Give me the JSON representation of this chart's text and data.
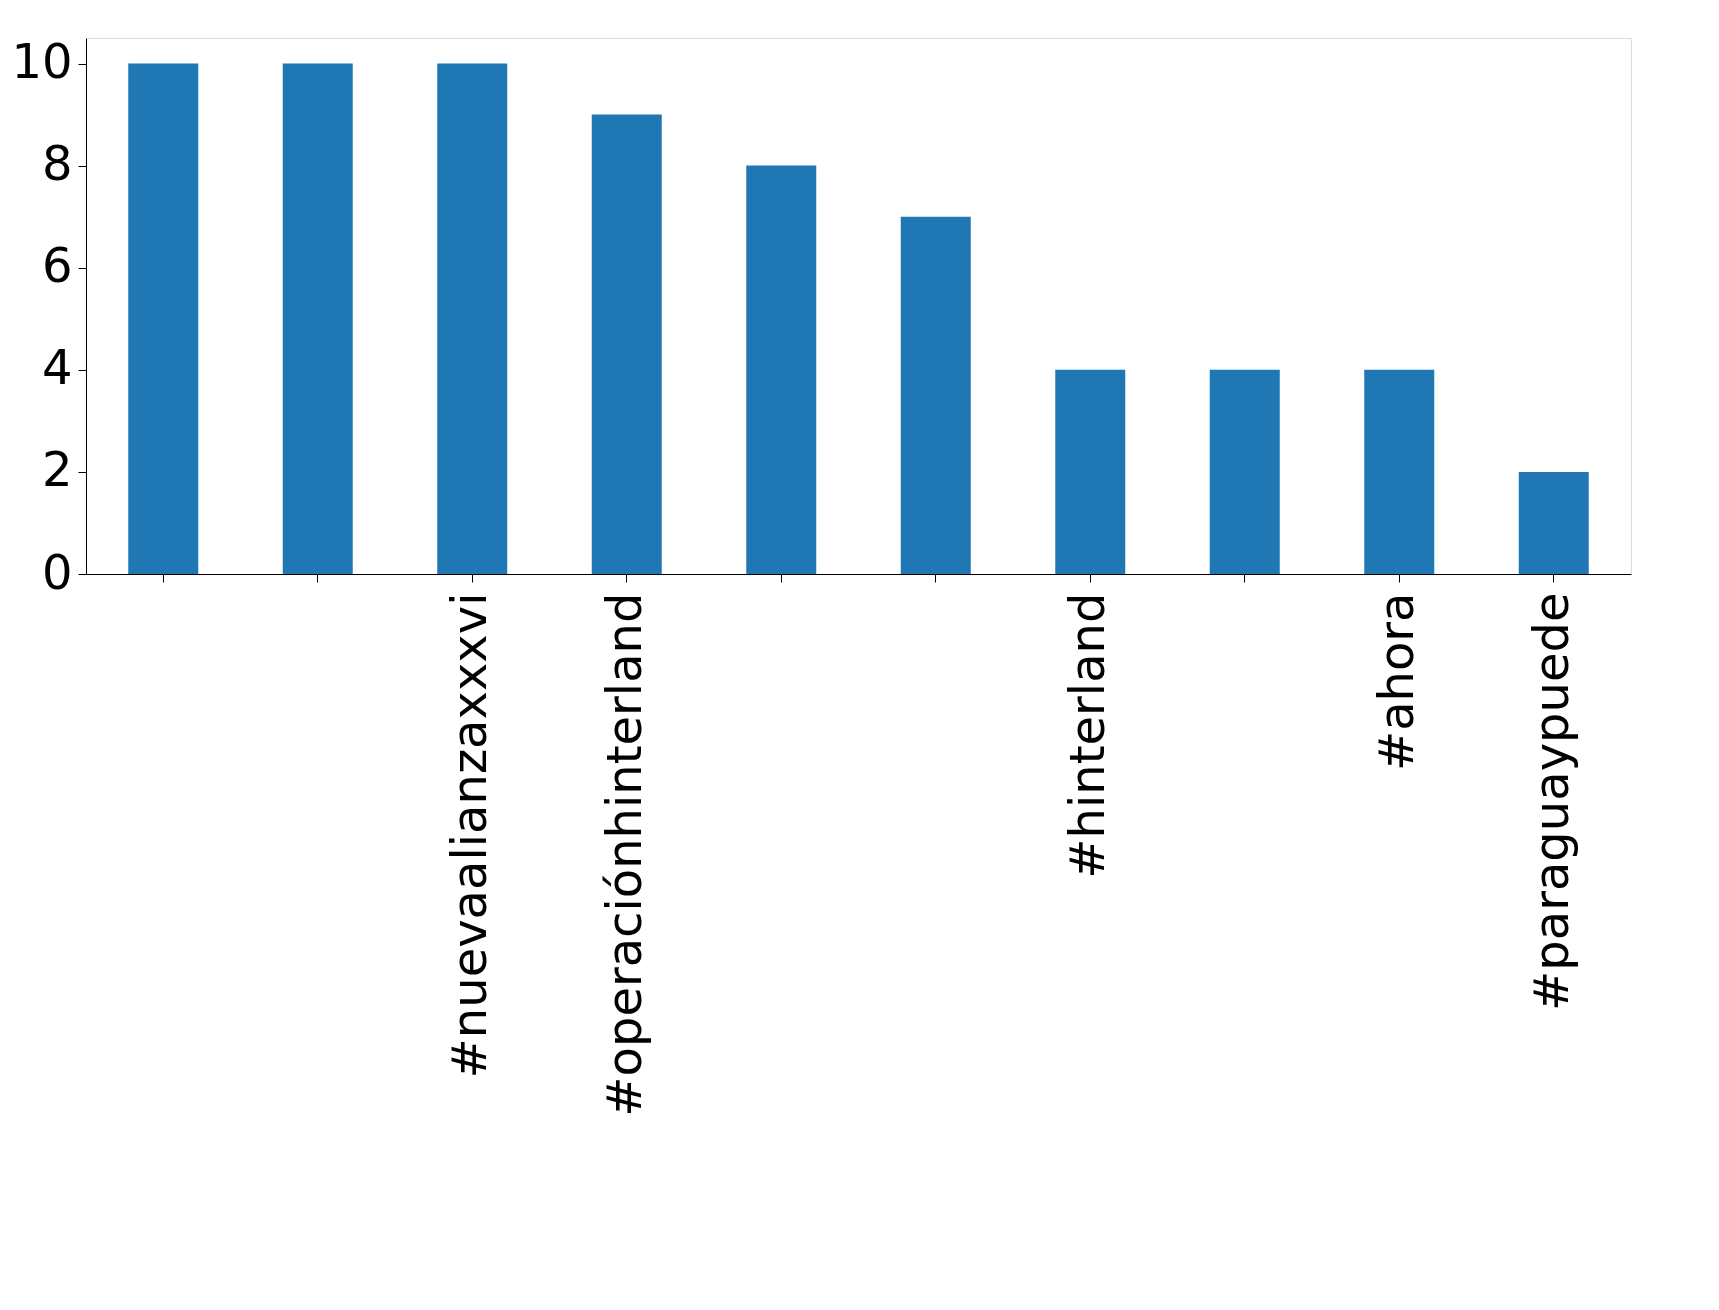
{
  "chart_data": {
    "type": "bar",
    "categories": [
      null,
      null,
      "#nuevaalianzaxxxvi",
      "#operaciónhinterland",
      null,
      null,
      "#hinterland",
      null,
      "#ahora",
      "#paraguaypuede"
    ],
    "values": [
      10,
      10,
      10,
      9,
      8,
      7,
      4,
      4,
      4,
      2
    ],
    "color": "#1f77b4",
    "ylim": [
      0,
      10.5
    ],
    "yticks": [
      0,
      2,
      4,
      6,
      8,
      10
    ],
    "grid": false
  }
}
